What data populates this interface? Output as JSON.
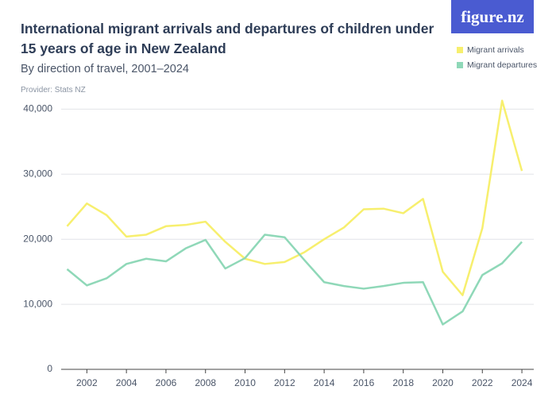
{
  "logo": "figure.nz",
  "chart_data": {
    "type": "line",
    "title": "International migrant arrivals and departures of children under 15 years of age in New Zealand",
    "subtitle": "By direction of travel, 2001–2024",
    "provider": "Provider: Stats NZ",
    "x": [
      2001,
      2002,
      2003,
      2004,
      2005,
      2006,
      2007,
      2008,
      2009,
      2010,
      2011,
      2012,
      2013,
      2014,
      2015,
      2016,
      2017,
      2018,
      2019,
      2020,
      2021,
      2022,
      2023,
      2024
    ],
    "series": [
      {
        "name": "Migrant arrivals",
        "color": "#f7ef6e",
        "values": [
          22000,
          25500,
          23700,
          20400,
          20700,
          22000,
          22200,
          22700,
          19600,
          17000,
          16200,
          16500,
          18000,
          20000,
          21800,
          24600,
          24700,
          24000,
          26200,
          15000,
          11400,
          21700,
          41300,
          30500
        ]
      },
      {
        "name": "Migrant departures",
        "color": "#8fd8b8",
        "values": [
          15400,
          12900,
          14000,
          16200,
          17000,
          16600,
          18600,
          19900,
          15500,
          17100,
          20700,
          20300,
          16800,
          13400,
          12800,
          12400,
          12800,
          13300,
          13400,
          6900,
          8900,
          14500,
          16300,
          19600
        ]
      }
    ],
    "xlim": [
      2000.7,
      2024.6
    ],
    "xticks": [
      2002,
      2004,
      2006,
      2008,
      2010,
      2012,
      2014,
      2016,
      2018,
      2020,
      2022,
      2024
    ],
    "ylim": [
      0,
      42000
    ],
    "yticks": [
      0,
      {
        "value": 10000,
        "label": "10,000"
      },
      {
        "value": 20000,
        "label": "20,000"
      },
      {
        "value": 30000,
        "label": "30,000"
      },
      {
        "value": 40000,
        "label": "40,000"
      }
    ],
    "grid": true,
    "legend": "top-right"
  }
}
